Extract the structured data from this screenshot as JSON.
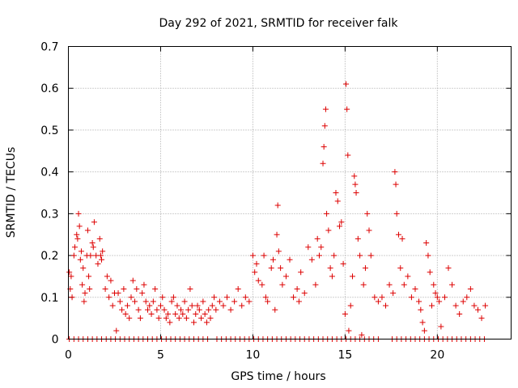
{
  "chart_data": {
    "type": "scatter",
    "title": "Day 292 of 2021, SRMTID for receiver falk",
    "xlabel": "GPS time / hours",
    "ylabel": "SRMTID / TECUs",
    "xlim": [
      0,
      24
    ],
    "ylim": [
      0,
      0.7
    ],
    "xticks": [
      0,
      5,
      10,
      15,
      20
    ],
    "xtick_labels": [
      "0",
      "5",
      "10",
      "15",
      "20"
    ],
    "yticks": [
      0,
      0.1,
      0.2,
      0.3,
      0.4,
      0.5,
      0.6,
      0.7
    ],
    "ytick_labels": [
      "0",
      "0.1",
      "0.2",
      "0.3",
      "0.4",
      "0.5",
      "0.6",
      "0.7"
    ],
    "grid": true,
    "marker": "plus",
    "color": "#dd0000",
    "series": [
      {
        "name": "SRMTID",
        "points": [
          [
            0.05,
            0.16
          ],
          [
            0.1,
            0.12
          ],
          [
            0.15,
            0.15
          ],
          [
            0.2,
            0.1
          ],
          [
            0.3,
            0.2
          ],
          [
            0.35,
            0.22
          ],
          [
            0.45,
            0.25
          ],
          [
            0.5,
            0.24
          ],
          [
            0.55,
            0.3
          ],
          [
            0.6,
            0.27
          ],
          [
            0.65,
            0.19
          ],
          [
            0.7,
            0.21
          ],
          [
            0.75,
            0.13
          ],
          [
            0.8,
            0.17
          ],
          [
            0.85,
            0.09
          ],
          [
            0.9,
            0.11
          ],
          [
            1.0,
            0.2
          ],
          [
            1.05,
            0.26
          ],
          [
            1.1,
            0.15
          ],
          [
            1.15,
            0.12
          ],
          [
            1.2,
            0.2
          ],
          [
            1.3,
            0.23
          ],
          [
            1.35,
            0.22
          ],
          [
            1.4,
            0.28
          ],
          [
            1.5,
            0.2
          ],
          [
            1.6,
            0.18
          ],
          [
            1.7,
            0.24
          ],
          [
            1.75,
            0.2
          ],
          [
            1.8,
            0.19
          ],
          [
            1.85,
            0.21
          ],
          [
            2.0,
            0.12
          ],
          [
            2.1,
            0.15
          ],
          [
            2.2,
            0.1
          ],
          [
            2.3,
            0.14
          ],
          [
            2.4,
            0.08
          ],
          [
            2.5,
            0.11
          ],
          [
            2.6,
            0.02
          ],
          [
            2.7,
            0.11
          ],
          [
            2.8,
            0.09
          ],
          [
            2.9,
            0.07
          ],
          [
            3.0,
            0.12
          ],
          [
            3.1,
            0.06
          ],
          [
            3.2,
            0.08
          ],
          [
            3.3,
            0.05
          ],
          [
            3.4,
            0.1
          ],
          [
            3.5,
            0.14
          ],
          [
            3.6,
            0.09
          ],
          [
            3.7,
            0.12
          ],
          [
            3.8,
            0.07
          ],
          [
            3.9,
            0.05
          ],
          [
            4.0,
            0.11
          ],
          [
            4.1,
            0.13
          ],
          [
            4.2,
            0.09
          ],
          [
            4.3,
            0.07
          ],
          [
            4.4,
            0.08
          ],
          [
            4.5,
            0.06
          ],
          [
            4.6,
            0.09
          ],
          [
            4.7,
            0.12
          ],
          [
            4.8,
            0.07
          ],
          [
            4.9,
            0.05
          ],
          [
            5.0,
            0.08
          ],
          [
            5.1,
            0.1
          ],
          [
            5.2,
            0.07
          ],
          [
            5.3,
            0.05
          ],
          [
            5.4,
            0.06
          ],
          [
            5.5,
            0.04
          ],
          [
            5.6,
            0.09
          ],
          [
            5.7,
            0.1
          ],
          [
            5.8,
            0.06
          ],
          [
            5.9,
            0.08
          ],
          [
            6.0,
            0.05
          ],
          [
            6.1,
            0.07
          ],
          [
            6.2,
            0.06
          ],
          [
            6.3,
            0.09
          ],
          [
            6.4,
            0.05
          ],
          [
            6.5,
            0.07
          ],
          [
            6.6,
            0.12
          ],
          [
            6.7,
            0.08
          ],
          [
            6.8,
            0.04
          ],
          [
            6.9,
            0.06
          ],
          [
            7.0,
            0.08
          ],
          [
            7.1,
            0.07
          ],
          [
            7.2,
            0.05
          ],
          [
            7.3,
            0.09
          ],
          [
            7.4,
            0.06
          ],
          [
            7.5,
            0.04
          ],
          [
            7.6,
            0.07
          ],
          [
            7.7,
            0.05
          ],
          [
            7.8,
            0.08
          ],
          [
            7.9,
            0.1
          ],
          [
            8.0,
            0.07
          ],
          [
            8.2,
            0.09
          ],
          [
            8.4,
            0.08
          ],
          [
            8.6,
            0.1
          ],
          [
            8.8,
            0.07
          ],
          [
            9.0,
            0.09
          ],
          [
            9.2,
            0.12
          ],
          [
            9.4,
            0.08
          ],
          [
            9.6,
            0.1
          ],
          [
            9.8,
            0.09
          ],
          [
            10.0,
            0.2
          ],
          [
            10.1,
            0.16
          ],
          [
            10.2,
            0.18
          ],
          [
            10.3,
            0.14
          ],
          [
            10.5,
            0.13
          ],
          [
            10.6,
            0.2
          ],
          [
            10.7,
            0.1
          ],
          [
            10.8,
            0.09
          ],
          [
            11.0,
            0.17
          ],
          [
            11.1,
            0.19
          ],
          [
            11.2,
            0.07
          ],
          [
            11.3,
            0.25
          ],
          [
            11.35,
            0.32
          ],
          [
            11.4,
            0.21
          ],
          [
            11.5,
            0.17
          ],
          [
            11.6,
            0.13
          ],
          [
            11.8,
            0.15
          ],
          [
            12.0,
            0.19
          ],
          [
            12.2,
            0.1
          ],
          [
            12.4,
            0.12
          ],
          [
            12.5,
            0.09
          ],
          [
            12.6,
            0.16
          ],
          [
            12.8,
            0.11
          ],
          [
            13.0,
            0.22
          ],
          [
            13.2,
            0.19
          ],
          [
            13.4,
            0.13
          ],
          [
            13.5,
            0.24
          ],
          [
            13.6,
            0.2
          ],
          [
            13.7,
            0.22
          ],
          [
            13.8,
            0.42
          ],
          [
            13.85,
            0.46
          ],
          [
            13.9,
            0.51
          ],
          [
            13.95,
            0.55
          ],
          [
            14.0,
            0.3
          ],
          [
            14.1,
            0.26
          ],
          [
            14.2,
            0.17
          ],
          [
            14.3,
            0.15
          ],
          [
            14.4,
            0.2
          ],
          [
            14.5,
            0.35
          ],
          [
            14.6,
            0.33
          ],
          [
            14.7,
            0.27
          ],
          [
            14.8,
            0.28
          ],
          [
            14.9,
            0.18
          ],
          [
            15.0,
            0.06
          ],
          [
            15.05,
            0.61
          ],
          [
            15.1,
            0.55
          ],
          [
            15.15,
            0.44
          ],
          [
            15.2,
            0.02
          ],
          [
            15.3,
            0.08
          ],
          [
            15.4,
            0.15
          ],
          [
            15.5,
            0.39
          ],
          [
            15.55,
            0.37
          ],
          [
            15.6,
            0.35
          ],
          [
            15.7,
            0.24
          ],
          [
            15.8,
            0.2
          ],
          [
            15.9,
            0.01
          ],
          [
            16.0,
            0.13
          ],
          [
            16.1,
            0.17
          ],
          [
            16.2,
            0.3
          ],
          [
            16.3,
            0.26
          ],
          [
            16.4,
            0.2
          ],
          [
            16.6,
            0.1
          ],
          [
            16.8,
            0.09
          ],
          [
            17.0,
            0.1
          ],
          [
            17.2,
            0.08
          ],
          [
            17.4,
            0.13
          ],
          [
            17.6,
            0.11
          ],
          [
            17.7,
            0.4
          ],
          [
            17.75,
            0.37
          ],
          [
            17.8,
            0.3
          ],
          [
            17.9,
            0.25
          ],
          [
            18.0,
            0.17
          ],
          [
            18.1,
            0.24
          ],
          [
            18.2,
            0.13
          ],
          [
            18.4,
            0.15
          ],
          [
            18.6,
            0.1
          ],
          [
            18.8,
            0.12
          ],
          [
            19.0,
            0.09
          ],
          [
            19.1,
            0.07
          ],
          [
            19.2,
            0.04
          ],
          [
            19.3,
            0.02
          ],
          [
            19.4,
            0.23
          ],
          [
            19.5,
            0.2
          ],
          [
            19.6,
            0.16
          ],
          [
            19.7,
            0.08
          ],
          [
            19.8,
            0.13
          ],
          [
            19.9,
            0.11
          ],
          [
            20.0,
            0.1
          ],
          [
            20.1,
            0.09
          ],
          [
            20.2,
            0.03
          ],
          [
            20.4,
            0.1
          ],
          [
            20.6,
            0.17
          ],
          [
            20.8,
            0.13
          ],
          [
            21.0,
            0.08
          ],
          [
            21.2,
            0.06
          ],
          [
            21.4,
            0.09
          ],
          [
            21.6,
            0.1
          ],
          [
            21.8,
            0.12
          ],
          [
            22.0,
            0.08
          ],
          [
            22.2,
            0.07
          ],
          [
            22.4,
            0.05
          ],
          [
            22.6,
            0.08
          ]
        ]
      },
      {
        "name": "zero-baseline",
        "x_start": 0.05,
        "x_end": 22.6,
        "x_step": 0.25,
        "y": 0,
        "gaps": [
          [
            2.6,
            2.7
          ],
          [
            7.6,
            7.9
          ],
          [
            16.9,
            17.3
          ]
        ]
      }
    ]
  }
}
